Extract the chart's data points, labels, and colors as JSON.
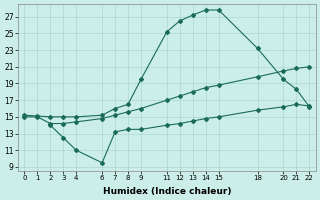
{
  "xlabel": "Humidex (Indice chaleur)",
  "bg_color": "#cceee8",
  "grid_color": "#aad8d0",
  "line_color": "#1a6b5a",
  "xlim": [
    -0.5,
    22.5
  ],
  "ylim": [
    8.5,
    28.5
  ],
  "yticks": [
    9,
    11,
    13,
    15,
    17,
    19,
    21,
    23,
    25,
    27
  ],
  "xtick_positions": [
    0,
    1,
    2,
    3,
    4,
    6,
    7,
    8,
    9,
    11,
    12,
    13,
    14,
    15,
    18,
    20,
    21,
    22
  ],
  "xtick_labels": [
    "0",
    "1",
    "2",
    "3",
    "4",
    "6",
    "7",
    "8",
    "9",
    "11",
    "12",
    "13",
    "14",
    "15",
    "18",
    "20",
    "21",
    "22"
  ],
  "line1_x": [
    0,
    1,
    2,
    3,
    4,
    6,
    7,
    8,
    9,
    11,
    12,
    13,
    14,
    15,
    18,
    20,
    21,
    22
  ],
  "line1_y": [
    15.2,
    15.1,
    15.0,
    15.0,
    15.0,
    15.2,
    16.0,
    16.5,
    19.5,
    25.2,
    26.5,
    27.2,
    27.8,
    27.8,
    23.2,
    19.5,
    18.3,
    16.2
  ],
  "line2_x": [
    0,
    1,
    2,
    3,
    4,
    6,
    7,
    8,
    9,
    11,
    12,
    13,
    14,
    15,
    18,
    20,
    21,
    22
  ],
  "line2_y": [
    15.0,
    15.0,
    14.2,
    14.2,
    14.4,
    14.8,
    15.2,
    15.6,
    16.0,
    17.0,
    17.5,
    18.0,
    18.5,
    18.8,
    19.8,
    20.5,
    20.8,
    21.0
  ],
  "line3_x": [
    2,
    3,
    4,
    6,
    7,
    8,
    9,
    11,
    12,
    13,
    14,
    15,
    18,
    20,
    21,
    22
  ],
  "line3_y": [
    14.0,
    12.5,
    11.0,
    9.5,
    13.2,
    13.5,
    13.5,
    14.0,
    14.2,
    14.5,
    14.8,
    15.0,
    15.8,
    16.2,
    16.5,
    16.3
  ]
}
